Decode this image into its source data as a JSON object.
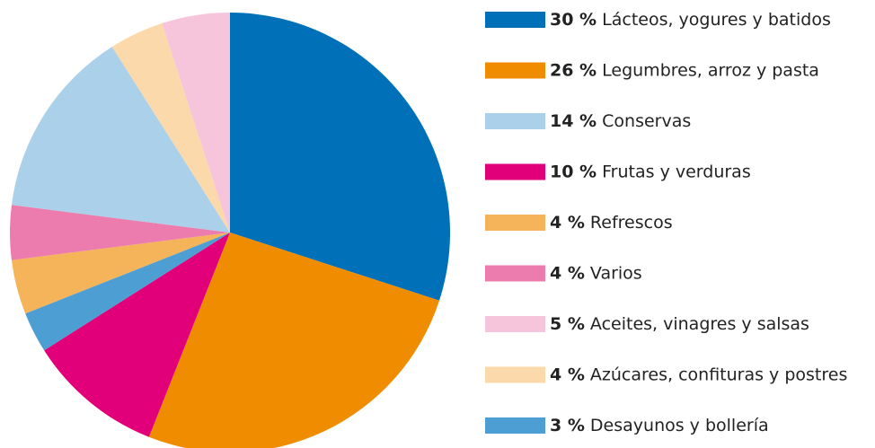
{
  "chart_data": {
    "type": "pie",
    "categories": [
      "Lácteos, yogures y batidos",
      "Legumbres, arroz y pasta",
      "Frutas y verduras",
      "Desayunos y bollería",
      "Refrescos",
      "Varios",
      "Conservas",
      "Azúcares, confituras y postres",
      "Aceites, vinagres y salsas"
    ],
    "values": [
      30,
      26,
      10,
      3,
      4,
      4,
      14,
      4,
      5
    ],
    "value_labels": [
      "30 %",
      "26 %",
      "10 %",
      "3 %",
      "4 %",
      "4 %",
      "14 %",
      "4 %",
      "5 %"
    ],
    "colors": [
      "#0070b8",
      "#f08c00",
      "#e2007a",
      "#4d9fd3",
      "#f5b45a",
      "#ec7cad",
      "#abd0e9",
      "#fbd9aa",
      "#f6c5dc"
    ]
  }
}
